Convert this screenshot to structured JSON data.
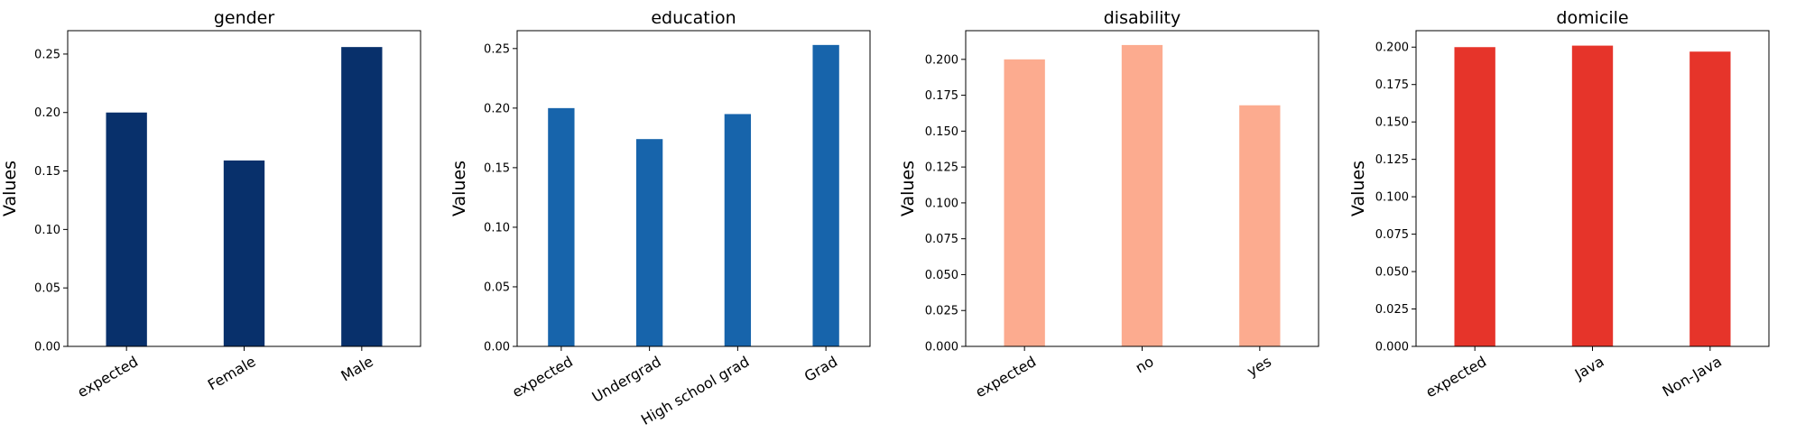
{
  "chart_data": [
    {
      "type": "bar",
      "title": "gender",
      "xlabel": "",
      "ylabel": "Values",
      "categories": [
        "expected",
        "Female",
        "Male"
      ],
      "values": [
        0.2,
        0.159,
        0.256
      ],
      "ylim": [
        0,
        0.27
      ],
      "yticks": [
        "0.00",
        "0.05",
        "0.10",
        "0.15",
        "0.20",
        "0.25"
      ],
      "color": "#08306b",
      "grid": false
    },
    {
      "type": "bar",
      "title": "education",
      "xlabel": "",
      "ylabel": "Values",
      "categories": [
        "expected",
        "Undergrad",
        "High school grad",
        "Grad"
      ],
      "values": [
        0.2,
        0.174,
        0.195,
        0.253
      ],
      "ylim": [
        0,
        0.265
      ],
      "yticks": [
        "0.00",
        "0.05",
        "0.10",
        "0.15",
        "0.20",
        "0.25"
      ],
      "color": "#1764ab",
      "grid": false
    },
    {
      "type": "bar",
      "title": "disability",
      "xlabel": "",
      "ylabel": "Values",
      "categories": [
        "expected",
        "no",
        "yes"
      ],
      "values": [
        0.2,
        0.21,
        0.168
      ],
      "ylim": [
        0,
        0.22
      ],
      "yticks": [
        "0.000",
        "0.025",
        "0.050",
        "0.075",
        "0.100",
        "0.125",
        "0.150",
        "0.175",
        "0.200"
      ],
      "color": "#fcab8f",
      "grid": false
    },
    {
      "type": "bar",
      "title": "domicile",
      "xlabel": "",
      "ylabel": "Values",
      "categories": [
        "expected",
        "Java",
        "Non-Java"
      ],
      "values": [
        0.2,
        0.201,
        0.197
      ],
      "ylim": [
        0,
        0.211
      ],
      "yticks": [
        "0.000",
        "0.025",
        "0.050",
        "0.075",
        "0.100",
        "0.125",
        "0.150",
        "0.175",
        "0.200"
      ],
      "color": "#e6342a",
      "grid": false
    }
  ]
}
